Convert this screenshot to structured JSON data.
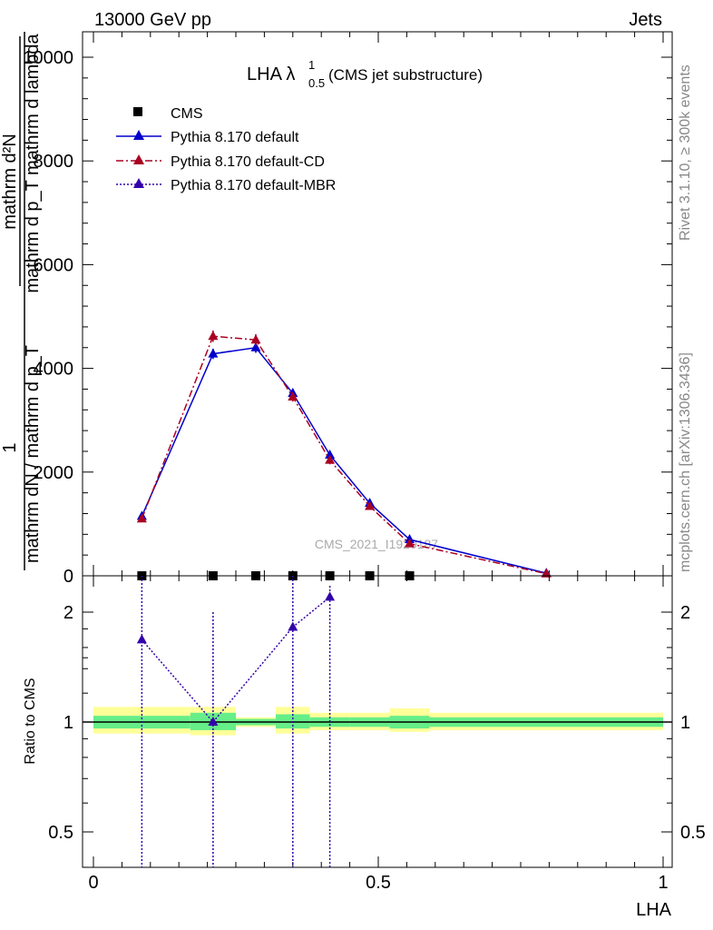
{
  "header": {
    "left": "13000 GeV pp",
    "right": "Jets"
  },
  "title_main": "LHA λ",
  "title_sup": "1",
  "title_sub": "0.5",
  "title_rest": " (CMS jet substructure)",
  "ylabel_num": "1",
  "ylabel_num_frac": "mathrm d²N",
  "ylabel_num_den": "mathrm d p_T mathrm d lambda",
  "ylabel_den": "mathrm dN / mathrm d p_T",
  "ratio_ylabel": "Ratio to CMS",
  "xlabel": "LHA",
  "watermark": "CMS_2021_I1920187",
  "side_text_top": "Rivet 3.1.10, ≥ 300k events",
  "side_text_bottom": "mcplots.cern.ch [arXiv:1306.3436]",
  "colors": {
    "cms": "#000000",
    "default": "#0000cc",
    "cd": "#aa0022",
    "mbr": "#3300aa",
    "band_inner": "#66ee88",
    "band_outer": "#ffff99"
  },
  "chart_data": [
    {
      "type": "line",
      "panel": "main",
      "xlim": [
        0,
        1
      ],
      "ylim": [
        0,
        10500
      ],
      "y_ticks": [
        0,
        2000,
        4000,
        6000,
        8000,
        10000
      ],
      "y_tick_labels": [
        "0",
        "2000",
        "4000",
        "6000",
        "8000",
        "10000"
      ],
      "legend_position": "top-left",
      "series": [
        {
          "name": "CMS",
          "marker": "square",
          "x": [
            0.085,
            0.21,
            0.285,
            0.35,
            0.415,
            0.485,
            0.555
          ],
          "y": [
            0,
            0,
            0,
            0,
            0,
            0,
            0
          ]
        },
        {
          "name": "Pythia 8.170 default",
          "marker": "triangle",
          "line": "solid",
          "x": [
            0.085,
            0.21,
            0.285,
            0.35,
            0.415,
            0.485,
            0.555,
            0.795
          ],
          "y": [
            1150,
            4280,
            4400,
            3520,
            2330,
            1400,
            700,
            50
          ],
          "err": [
            60,
            100,
            100,
            90,
            80,
            60,
            40,
            10
          ]
        },
        {
          "name": "Pythia 8.170 default-CD",
          "marker": "triangle",
          "line": "dashdot",
          "x": [
            0.085,
            0.21,
            0.285,
            0.35,
            0.415,
            0.485,
            0.555,
            0.795
          ],
          "y": [
            1100,
            4620,
            4550,
            3450,
            2230,
            1340,
            620,
            40
          ],
          "err": [
            60,
            110,
            110,
            90,
            80,
            60,
            40,
            10
          ]
        },
        {
          "name": "Pythia 8.170 default-MBR",
          "marker": "triangle",
          "line": "dotted",
          "x": [],
          "y": []
        }
      ]
    },
    {
      "type": "line",
      "panel": "ratio",
      "xlim": [
        0,
        1
      ],
      "ylim": [
        0.38,
        2.4
      ],
      "y_ticks": [
        0.5,
        1,
        2
      ],
      "y_tick_labels": [
        "0.5",
        "1",
        "2"
      ],
      "x_ticks": [
        0,
        0.5,
        1
      ],
      "x_tick_labels": [
        "0",
        "0.5",
        "1"
      ],
      "bands": [
        {
          "x0": 0.0,
          "x1": 0.17,
          "inner": [
            0.96,
            1.04
          ],
          "outer": [
            0.93,
            1.1
          ]
        },
        {
          "x0": 0.17,
          "x1": 0.25,
          "inner": [
            0.95,
            1.06
          ],
          "outer": [
            0.92,
            1.1
          ]
        },
        {
          "x0": 0.25,
          "x1": 0.32,
          "inner": [
            0.98,
            1.02
          ],
          "outer": [
            0.97,
            1.03
          ]
        },
        {
          "x0": 0.32,
          "x1": 0.38,
          "inner": [
            0.96,
            1.05
          ],
          "outer": [
            0.93,
            1.1
          ]
        },
        {
          "x0": 0.38,
          "x1": 0.45,
          "inner": [
            0.97,
            1.03
          ],
          "outer": [
            0.95,
            1.06
          ]
        },
        {
          "x0": 0.45,
          "x1": 0.52,
          "inner": [
            0.97,
            1.03
          ],
          "outer": [
            0.95,
            1.06
          ]
        },
        {
          "x0": 0.52,
          "x1": 0.59,
          "inner": [
            0.96,
            1.04
          ],
          "outer": [
            0.94,
            1.09
          ]
        },
        {
          "x0": 0.59,
          "x1": 1.0,
          "inner": [
            0.97,
            1.03
          ],
          "outer": [
            0.95,
            1.06
          ]
        }
      ],
      "series": [
        {
          "name": "Pythia 8.170 default-MBR",
          "marker": "triangle",
          "line": "dotted",
          "x": [
            0.085,
            0.21,
            0.35,
            0.415
          ],
          "y": [
            1.68,
            1.0,
            1.82,
            2.2
          ]
        }
      ]
    }
  ]
}
